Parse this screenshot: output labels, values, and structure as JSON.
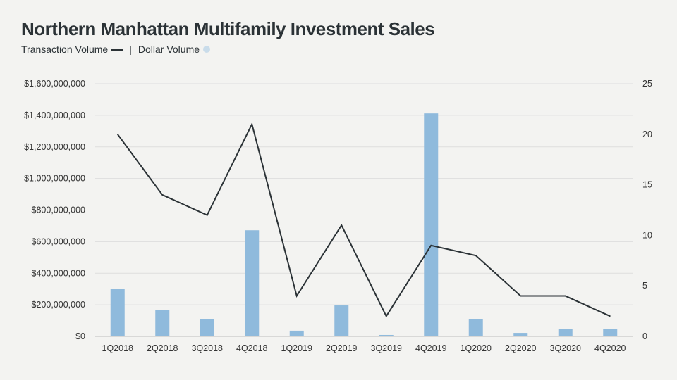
{
  "chart_data": {
    "type": "bar+line",
    "title": "Northern Manhattan Multifamily Investment Sales",
    "legend": {
      "line_label": "Transaction Volume",
      "separator": "|",
      "bar_label": "Dollar Volume",
      "placement": "top-left"
    },
    "categories": [
      "1Q2018",
      "2Q2018",
      "3Q2018",
      "4Q2018",
      "1Q2019",
      "2Q2019",
      "3Q2019",
      "4Q2019",
      "1Q2020",
      "2Q2020",
      "3Q2020",
      "4Q2020"
    ],
    "series": [
      {
        "name": "Dollar Volume",
        "type": "bar",
        "axis": "left",
        "color": "#8fbadc",
        "values": [
          303000000,
          169000000,
          107000000,
          672000000,
          36000000,
          196000000,
          9000000,
          1412000000,
          111000000,
          22000000,
          45000000,
          49000000
        ]
      },
      {
        "name": "Transaction Volume",
        "type": "line",
        "axis": "right",
        "color": "#2b3236",
        "values": [
          20,
          14,
          12,
          21,
          4,
          11,
          2,
          9,
          8,
          4,
          4,
          2
        ]
      }
    ],
    "left_axis": {
      "ylim": [
        0,
        1600000000
      ],
      "ticks": [
        "$0",
        "$200,000,000",
        "$400,000,000",
        "$600,000,000",
        "$800,000,000",
        "$1,000,000,000",
        "$1,200,000,000",
        "$1,400,000,000",
        "$1,600,000,000"
      ]
    },
    "right_axis": {
      "ylim": [
        0,
        25
      ],
      "ticks": [
        "0",
        "5",
        "10",
        "15",
        "20",
        "25"
      ]
    },
    "grid": true
  }
}
